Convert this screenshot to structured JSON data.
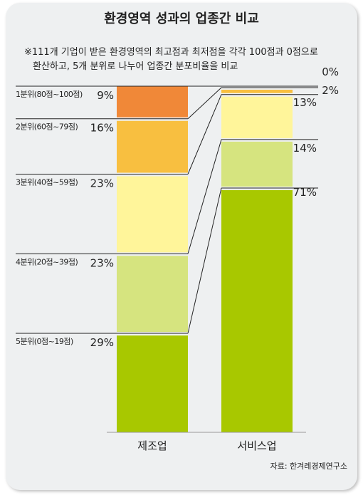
{
  "title": "환경영역 성과의 업종간 비교",
  "note": {
    "line1": "※111개 기업이 받은 환경영역의 최고점과 최저점을 각각 100점과 0점으로",
    "line2": "환산하고, 5개 분위로 나누어 업종간 분포비율을 비교"
  },
  "source": "자료: 한겨레경제연구소",
  "chart_data": {
    "type": "stacked-bar",
    "categories": [
      "제조업",
      "서비스업"
    ],
    "segments": [
      {
        "name": "1분위(80점~100점)",
        "color": "#f08838",
        "values": [
          9,
          0
        ],
        "labels": [
          "9%",
          "0%"
        ]
      },
      {
        "name": "2분위(60점~79점)",
        "color": "#f8bf40",
        "values": [
          16,
          2
        ],
        "labels": [
          "16%",
          "2%"
        ]
      },
      {
        "name": "3분위(40점~59점)",
        "color": "#fff59a",
        "values": [
          23,
          13
        ],
        "labels": [
          "23%",
          "13%"
        ]
      },
      {
        "name": "4분위(20점~39점)",
        "color": "#d6e47f",
        "values": [
          23,
          14
        ],
        "labels": [
          "23%",
          "14%"
        ]
      },
      {
        "name": "5분위(0점~19점)",
        "color": "#a8c800",
        "values": [
          29,
          71
        ],
        "labels": [
          "29%",
          "71%"
        ]
      }
    ],
    "ylim": [
      0,
      100
    ]
  }
}
